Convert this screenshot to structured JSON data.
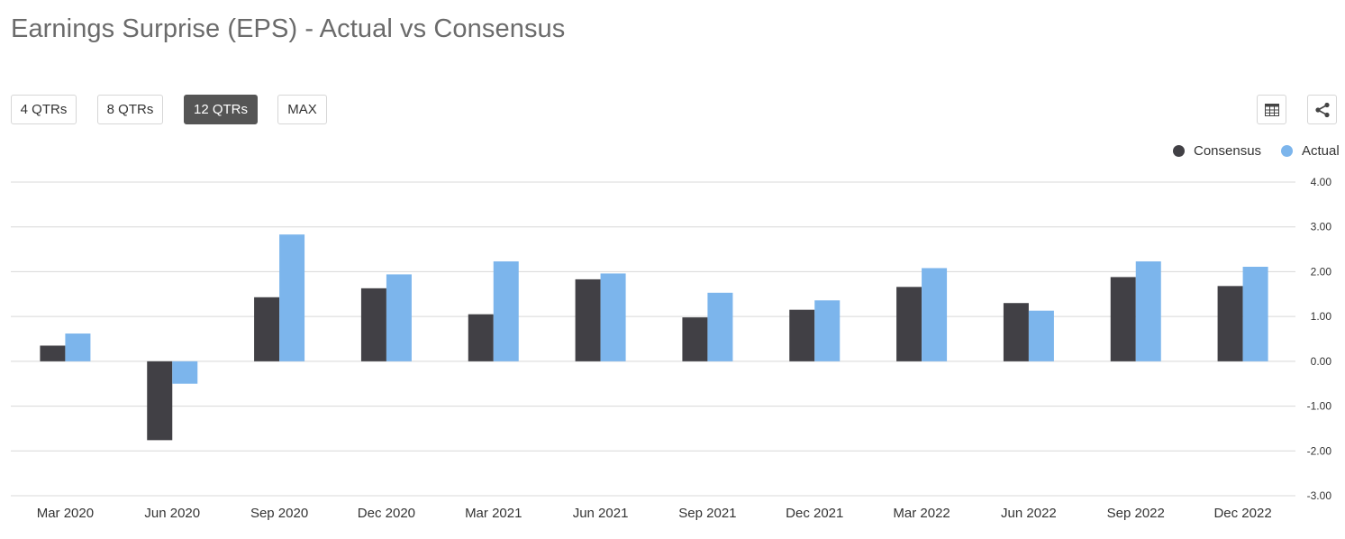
{
  "title": "Earnings Surprise (EPS) - Actual vs Consensus",
  "range_buttons": [
    {
      "label": "4 QTRs",
      "active": false
    },
    {
      "label": "8 QTRs",
      "active": false
    },
    {
      "label": "12 QTRs",
      "active": true
    },
    {
      "label": "MAX",
      "active": false
    }
  ],
  "toolbar_icons": [
    "table-icon",
    "share-icon"
  ],
  "colors": {
    "consensus": "#414045",
    "actual": "#7cb5ec",
    "grid": "#d8d8d8"
  },
  "chart_data": {
    "type": "bar",
    "categories": [
      "Mar 2020",
      "Jun 2020",
      "Sep 2020",
      "Dec 2020",
      "Mar 2021",
      "Jun 2021",
      "Sep 2021",
      "Dec 2021",
      "Mar 2022",
      "Jun 2022",
      "Sep 2022",
      "Dec 2022"
    ],
    "series": [
      {
        "name": "Consensus",
        "values": [
          0.35,
          -1.76,
          1.43,
          1.63,
          1.05,
          1.83,
          0.98,
          1.15,
          1.66,
          1.3,
          1.88,
          1.68
        ]
      },
      {
        "name": "Actual",
        "values": [
          0.62,
          -0.5,
          2.83,
          1.94,
          2.23,
          1.96,
          1.53,
          1.36,
          2.08,
          1.13,
          2.23,
          2.11
        ]
      }
    ],
    "ylim": [
      -3,
      4
    ],
    "yticks": [
      "4.00",
      "3.00",
      "2.00",
      "1.00",
      "0.00",
      "-1.00",
      "-2.00",
      "-3.00"
    ],
    "ytick_values": [
      4,
      3,
      2,
      1,
      0,
      -1,
      -2,
      -3
    ],
    "legend": [
      "Consensus",
      "Actual"
    ],
    "legend_position": "top-right",
    "grid": true,
    "y_axis_side": "right"
  }
}
